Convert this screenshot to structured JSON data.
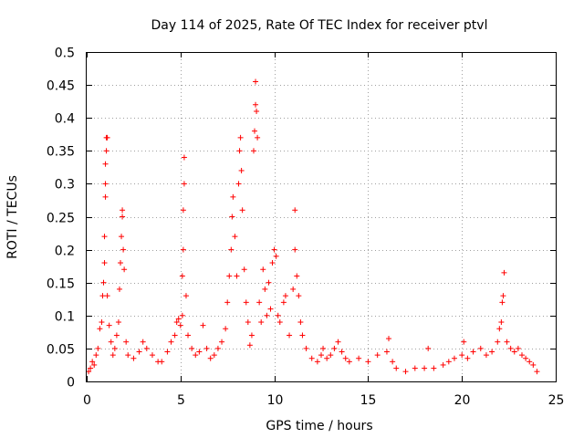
{
  "chart_data": {
    "type": "scatter",
    "title": "Day 114 of 2025, Rate Of TEC Index for receiver ptvl",
    "xlabel": "GPS time / hours",
    "ylabel": "ROTI / TECUs",
    "xlim": [
      0,
      25
    ],
    "ylim": [
      0,
      0.5
    ],
    "xticks": [
      "0",
      "5",
      "10",
      "15",
      "20",
      "25"
    ],
    "yticks": [
      "0",
      "0.05",
      "0.1",
      "0.15",
      "0.2",
      "0.25",
      "0.3",
      "0.35",
      "0.4",
      "0.45",
      "0.5"
    ],
    "grid": true,
    "marker": "+",
    "marker_color": "#ff0000",
    "series": [
      {
        "name": "ROTI",
        "points": [
          [
            0.1,
            0.015
          ],
          [
            0.2,
            0.02
          ],
          [
            0.3,
            0.03
          ],
          [
            0.4,
            0.025
          ],
          [
            0.5,
            0.04
          ],
          [
            0.6,
            0.05
          ],
          [
            0.7,
            0.08
          ],
          [
            0.8,
            0.09
          ],
          [
            0.85,
            0.13
          ],
          [
            0.9,
            0.15
          ],
          [
            0.95,
            0.18
          ],
          [
            0.95,
            0.22
          ],
          [
            1.0,
            0.28
          ],
          [
            1.0,
            0.3
          ],
          [
            1.0,
            0.33
          ],
          [
            1.05,
            0.35
          ],
          [
            1.05,
            0.37
          ],
          [
            1.1,
            0.37
          ],
          [
            1.1,
            0.13
          ],
          [
            1.2,
            0.085
          ],
          [
            1.3,
            0.06
          ],
          [
            1.4,
            0.04
          ],
          [
            1.5,
            0.05
          ],
          [
            1.6,
            0.07
          ],
          [
            1.7,
            0.09
          ],
          [
            1.75,
            0.14
          ],
          [
            1.8,
            0.18
          ],
          [
            1.85,
            0.22
          ],
          [
            1.9,
            0.25
          ],
          [
            1.9,
            0.26
          ],
          [
            1.95,
            0.2
          ],
          [
            2.0,
            0.17
          ],
          [
            2.1,
            0.06
          ],
          [
            2.2,
            0.04
          ],
          [
            2.5,
            0.035
          ],
          [
            2.8,
            0.045
          ],
          [
            3.0,
            0.06
          ],
          [
            3.2,
            0.05
          ],
          [
            3.5,
            0.04
          ],
          [
            3.8,
            0.03
          ],
          [
            4.0,
            0.03
          ],
          [
            4.3,
            0.045
          ],
          [
            4.5,
            0.06
          ],
          [
            4.7,
            0.07
          ],
          [
            4.8,
            0.09
          ],
          [
            4.9,
            0.095
          ],
          [
            5.0,
            0.085
          ],
          [
            5.1,
            0.1
          ],
          [
            5.1,
            0.16
          ],
          [
            5.15,
            0.2
          ],
          [
            5.15,
            0.26
          ],
          [
            5.2,
            0.3
          ],
          [
            5.2,
            0.34
          ],
          [
            5.3,
            0.13
          ],
          [
            5.4,
            0.07
          ],
          [
            5.6,
            0.05
          ],
          [
            5.8,
            0.04
          ],
          [
            6.0,
            0.045
          ],
          [
            6.2,
            0.085
          ],
          [
            6.4,
            0.05
          ],
          [
            6.6,
            0.035
          ],
          [
            6.8,
            0.04
          ],
          [
            7.0,
            0.05
          ],
          [
            7.2,
            0.06
          ],
          [
            7.4,
            0.08
          ],
          [
            7.5,
            0.12
          ],
          [
            7.6,
            0.16
          ],
          [
            7.7,
            0.2
          ],
          [
            7.75,
            0.25
          ],
          [
            7.8,
            0.28
          ],
          [
            7.9,
            0.22
          ],
          [
            8.0,
            0.16
          ],
          [
            8.1,
            0.3
          ],
          [
            8.15,
            0.35
          ],
          [
            8.2,
            0.37
          ],
          [
            8.25,
            0.32
          ],
          [
            8.3,
            0.26
          ],
          [
            8.4,
            0.17
          ],
          [
            8.5,
            0.12
          ],
          [
            8.6,
            0.09
          ],
          [
            8.7,
            0.055
          ],
          [
            8.8,
            0.07
          ],
          [
            8.9,
            0.35
          ],
          [
            8.95,
            0.38
          ],
          [
            9.0,
            0.42
          ],
          [
            9.0,
            0.455
          ],
          [
            9.05,
            0.41
          ],
          [
            9.1,
            0.37
          ],
          [
            9.2,
            0.12
          ],
          [
            9.3,
            0.09
          ],
          [
            9.4,
            0.17
          ],
          [
            9.5,
            0.14
          ],
          [
            9.6,
            0.1
          ],
          [
            9.7,
            0.15
          ],
          [
            9.8,
            0.11
          ],
          [
            9.9,
            0.18
          ],
          [
            10.0,
            0.2
          ],
          [
            10.1,
            0.19
          ],
          [
            10.2,
            0.1
          ],
          [
            10.3,
            0.09
          ],
          [
            10.5,
            0.12
          ],
          [
            10.6,
            0.13
          ],
          [
            10.8,
            0.07
          ],
          [
            11.0,
            0.14
          ],
          [
            11.1,
            0.2
          ],
          [
            11.1,
            0.26
          ],
          [
            11.2,
            0.16
          ],
          [
            11.3,
            0.13
          ],
          [
            11.4,
            0.09
          ],
          [
            11.5,
            0.07
          ],
          [
            11.7,
            0.05
          ],
          [
            12.0,
            0.035
          ],
          [
            12.3,
            0.03
          ],
          [
            12.5,
            0.04
          ],
          [
            12.6,
            0.05
          ],
          [
            12.8,
            0.035
          ],
          [
            13.0,
            0.04
          ],
          [
            13.2,
            0.05
          ],
          [
            13.4,
            0.06
          ],
          [
            13.6,
            0.045
          ],
          [
            13.8,
            0.035
          ],
          [
            14.0,
            0.03
          ],
          [
            14.5,
            0.035
          ],
          [
            15.0,
            0.03
          ],
          [
            15.5,
            0.04
          ],
          [
            16.0,
            0.045
          ],
          [
            16.1,
            0.065
          ],
          [
            16.3,
            0.03
          ],
          [
            16.5,
            0.02
          ],
          [
            17.0,
            0.015
          ],
          [
            17.5,
            0.02
          ],
          [
            18.0,
            0.02
          ],
          [
            18.2,
            0.05
          ],
          [
            18.5,
            0.02
          ],
          [
            19.0,
            0.025
          ],
          [
            19.3,
            0.03
          ],
          [
            19.6,
            0.035
          ],
          [
            20.0,
            0.04
          ],
          [
            20.1,
            0.06
          ],
          [
            20.3,
            0.035
          ],
          [
            20.6,
            0.045
          ],
          [
            21.0,
            0.05
          ],
          [
            21.3,
            0.04
          ],
          [
            21.6,
            0.045
          ],
          [
            21.9,
            0.06
          ],
          [
            22.0,
            0.08
          ],
          [
            22.1,
            0.09
          ],
          [
            22.15,
            0.12
          ],
          [
            22.2,
            0.13
          ],
          [
            22.25,
            0.165
          ],
          [
            22.4,
            0.06
          ],
          [
            22.6,
            0.05
          ],
          [
            22.8,
            0.045
          ],
          [
            23.0,
            0.05
          ],
          [
            23.2,
            0.04
          ],
          [
            23.4,
            0.035
          ],
          [
            23.6,
            0.03
          ],
          [
            23.8,
            0.025
          ],
          [
            24.0,
            0.015
          ]
        ]
      }
    ]
  }
}
